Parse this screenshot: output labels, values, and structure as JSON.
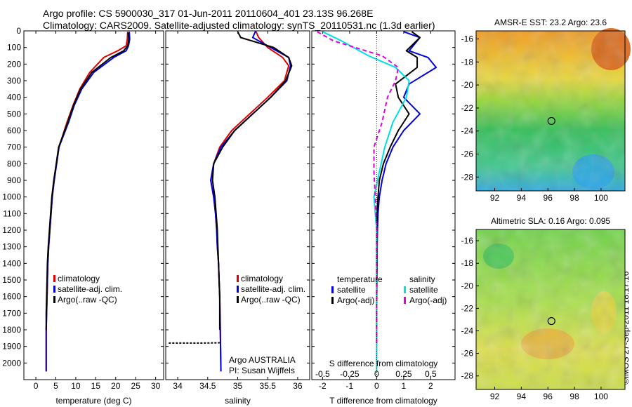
{
  "header": {
    "title_line1": "Argo profile: CS 5900030_317 01-Jun-2011 20110604_401 23.13S 96.268E",
    "title_line2": "Climatology: CARS2009. Satellite-adjusted climatology: synTS_20110531.nc (1.3d earlier)"
  },
  "credit": "©IMOS 27-Sep-2011 18:17:16",
  "colors": {
    "climatology": "#e00000",
    "satellite": "#0000e0",
    "argo": "#000000",
    "t_satellite": "#0000e0",
    "t_argo": "#000000",
    "s_satellite": "#00e0e0",
    "s_argo": "#e000e0"
  },
  "chart_data": [
    {
      "type": "line",
      "panel": "temperature",
      "xlabel": "temperature (deg C)",
      "ylabel": "",
      "xlim": [
        -3,
        32
      ],
      "ylim": [
        2100,
        0
      ],
      "xticks": [
        "0",
        "5",
        "10",
        "15",
        "20",
        "25",
        "30"
      ],
      "yticks": [
        "0",
        "100",
        "200",
        "300",
        "400",
        "500",
        "600",
        "700",
        "800",
        "900",
        "1000",
        "1100",
        "1200",
        "1300",
        "1400",
        "1500",
        "1600",
        "1700",
        "1800",
        "1900",
        "2000"
      ],
      "legend": [
        "climatology",
        "satellite-adj. clim.",
        "Argo(..raw -QC)"
      ],
      "series": [
        {
          "name": "climatology",
          "x": [
            23.0,
            22.9,
            22.6,
            20.5,
            17.0,
            13.5,
            11.0,
            9.3,
            7.8,
            5.8,
            5.2,
            4.6,
            4.1,
            3.8,
            3.5,
            3.2,
            3.0,
            2.9,
            2.8,
            2.7,
            2.6,
            2.6
          ],
          "y": [
            5,
            50,
            90,
            120,
            160,
            250,
            350,
            450,
            550,
            700,
            800,
            900,
            1000,
            1100,
            1200,
            1300,
            1400,
            1500,
            1600,
            1700,
            1800,
            2050
          ]
        },
        {
          "name": "satellite-adj. clim.",
          "x": [
            23.4,
            23.5,
            23.2,
            22.6,
            19.5,
            14.5,
            11.5,
            9.6,
            8.2,
            5.8,
            5.2,
            4.6,
            4.1,
            3.8,
            3.5,
            3.2,
            3.0,
            2.9,
            2.8,
            2.7,
            2.6,
            2.6
          ],
          "y": [
            5,
            50,
            90,
            120,
            160,
            250,
            350,
            450,
            550,
            700,
            800,
            900,
            1000,
            1100,
            1200,
            1300,
            1400,
            1500,
            1600,
            1700,
            1800,
            2050
          ]
        },
        {
          "name": "Argo(..raw -QC)",
          "x": [
            23.1,
            23.3,
            23.0,
            22.0,
            18.8,
            14.0,
            11.2,
            9.4,
            8.0,
            5.7,
            5.1,
            4.5,
            4.0,
            3.7,
            3.4,
            3.1,
            2.9,
            2.8,
            2.7,
            2.6,
            2.6
          ],
          "y": [
            10,
            50,
            90,
            120,
            160,
            250,
            350,
            450,
            550,
            700,
            800,
            900,
            1000,
            1100,
            1200,
            1300,
            1400,
            1500,
            1600,
            1700,
            1800
          ]
        }
      ]
    },
    {
      "type": "line",
      "panel": "salinity",
      "xlabel": "salinity",
      "xlim": [
        33.8,
        36.2
      ],
      "ylim": [
        2100,
        0
      ],
      "xticks": [
        "34",
        "34.5",
        "35",
        "35.5",
        "36"
      ],
      "annotations": [
        "Argo AUSTRALIA",
        "PI: Susan Wijffels"
      ],
      "legend": [
        "climatology",
        "satellite-adj. clim.",
        "Argo(..raw -QC)"
      ],
      "series": [
        {
          "name": "climatology",
          "x": [
            35.3,
            35.35,
            35.5,
            35.75,
            35.85,
            35.78,
            35.5,
            35.2,
            34.9,
            34.7,
            34.6,
            34.55,
            34.6,
            34.63,
            34.65,
            34.66,
            34.68,
            34.69,
            34.7,
            34.71,
            34.72
          ],
          "y": [
            0,
            40,
            100,
            160,
            210,
            300,
            400,
            500,
            600,
            700,
            800,
            900,
            1000,
            1100,
            1200,
            1300,
            1400,
            1500,
            1600,
            1800,
            2050
          ]
        },
        {
          "name": "satellite-adj. clim.",
          "x": [
            35.3,
            35.25,
            35.55,
            35.85,
            35.88,
            35.82,
            35.55,
            35.25,
            34.95,
            34.72,
            34.6,
            34.55,
            34.6,
            34.63,
            34.65,
            34.66,
            34.68,
            34.69,
            34.7,
            34.71,
            34.72
          ],
          "y": [
            0,
            40,
            100,
            160,
            210,
            300,
            400,
            500,
            600,
            700,
            800,
            900,
            1000,
            1100,
            1200,
            1300,
            1400,
            1500,
            1600,
            1800,
            2050
          ]
        },
        {
          "name": "Argo(..raw -QC)",
          "x": [
            35.0,
            35.05,
            35.6,
            35.85,
            35.9,
            35.8,
            35.55,
            35.25,
            34.95,
            34.75,
            34.6,
            34.58,
            34.62,
            34.64,
            34.66,
            34.67,
            34.68,
            34.69,
            34.7,
            34.7
          ],
          "y": [
            5,
            40,
            100,
            160,
            210,
            300,
            400,
            500,
            600,
            700,
            800,
            900,
            1000,
            1100,
            1200,
            1300,
            1400,
            1500,
            1600,
            1800
          ]
        },
        {
          "name": "Argo raw near 1880 dbar",
          "x": [
            33.85,
            34.4,
            34.7
          ],
          "y": [
            1880,
            1880,
            1878
          ]
        }
      ]
    },
    {
      "type": "line",
      "panel": "difference",
      "xlabel": "T difference from climatology",
      "xlabel2": "S difference from climatology",
      "xlim": [
        -2.4,
        2.9
      ],
      "ylim": [
        2100,
        0
      ],
      "xticks": [
        "-2",
        "-1",
        "0",
        "1",
        "2"
      ],
      "xticks2": [
        "-0.5",
        "-0.25",
        "0",
        "0.25",
        "0.5"
      ],
      "legend_temperature_title": "temperature",
      "legend_salinity_title": "salinity",
      "legend": [
        "satellite",
        "Argo(-adj)",
        "satellite",
        "Argo(-adj)"
      ],
      "series": [
        {
          "name": "temperature satellite",
          "x": [
            1.0,
            1.6,
            1.2,
            1.9,
            2.2,
            1.2,
            1.0,
            1.6,
            1.0,
            0.6,
            0.35,
            0.2,
            0.1,
            0.05,
            0.03,
            0.02,
            0.02,
            0.01,
            0.0,
            0.0
          ],
          "y": [
            5,
            40,
            120,
            160,
            220,
            320,
            400,
            500,
            600,
            700,
            800,
            900,
            1000,
            1100,
            1200,
            1300,
            1400,
            1500,
            1700,
            1800
          ]
        },
        {
          "name": "temperature Argo(-adj)",
          "x": [
            1.3,
            1.6,
            1.1,
            1.5,
            1.5,
            0.7,
            0.8,
            1.2,
            0.8,
            0.5,
            0.25,
            0.1,
            0.05,
            0.02,
            0.0,
            0.0,
            0.0,
            0.0
          ],
          "y": [
            5,
            40,
            120,
            160,
            220,
            320,
            400,
            500,
            600,
            700,
            800,
            900,
            1000,
            1100,
            1200,
            1300,
            1500,
            1880
          ]
        },
        {
          "name": "salinity satellite",
          "x": [
            -2.0,
            -1.3,
            -0.3,
            0.7,
            1.2,
            1.1,
            0.6,
            0.3,
            0.1,
            -0.1,
            0.0,
            0.0,
            0.0
          ],
          "y": [
            5,
            60,
            150,
            220,
            300,
            400,
            550,
            700,
            850,
            1000,
            1200,
            1600,
            2050
          ]
        },
        {
          "name": "salinity Argo(-adj)",
          "x": [
            -2.2,
            -1.6,
            0.2,
            0.8,
            0.7,
            0.4,
            0.2,
            -0.1,
            -0.1,
            -0.05,
            0.0,
            0.0,
            0.0
          ],
          "y": [
            5,
            60,
            150,
            220,
            300,
            400,
            550,
            700,
            850,
            1000,
            1200,
            1600,
            1880
          ]
        }
      ]
    },
    {
      "type": "heatmap",
      "panel": "AMSR-E SST",
      "title": "AMSR-E SST: 23.2 Argo: 23.6",
      "xlim": [
        90.6,
        101.8
      ],
      "ylim": [
        -29.2,
        -15.3
      ],
      "xticks": [
        "92",
        "94",
        "96",
        "98",
        "100"
      ],
      "yticks": [
        "-16",
        "-18",
        "-20",
        "-22",
        "-24",
        "-26",
        "-28"
      ],
      "marker": {
        "lon": 96.268,
        "lat": -23.13
      }
    },
    {
      "type": "heatmap",
      "panel": "Altimetric SLA",
      "title": "Altimetric SLA: 0.16 Argo: 0.095",
      "xlim": [
        90.6,
        101.8
      ],
      "ylim": [
        -29.2,
        -15.0
      ],
      "xticks": [
        "92",
        "94",
        "96",
        "98",
        "100"
      ],
      "yticks": [
        "-16",
        "-18",
        "-20",
        "-22",
        "-24",
        "-26",
        "-28"
      ],
      "marker": {
        "lon": 96.268,
        "lat": -23.13
      }
    }
  ]
}
